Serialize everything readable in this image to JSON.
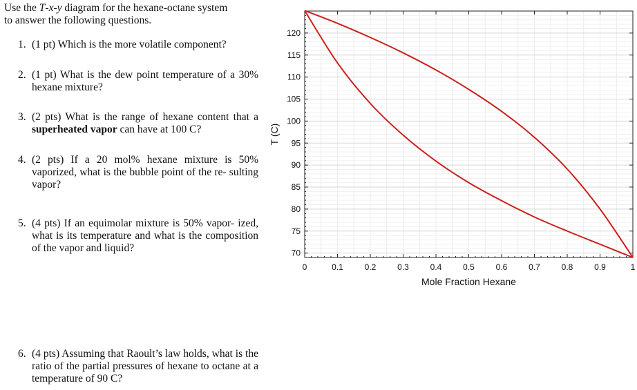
{
  "intro": {
    "line1_prefix": "Use the ",
    "tvar": "T",
    "sep1": "-",
    "xvar": "x",
    "sep2": "-",
    "yvar": "y",
    "line1_suffix": " diagram for the hexane-octane system",
    "line2": "to answer the following questions."
  },
  "questions": [
    {
      "number": "1.",
      "text": "(1 pt) Which is the more volatile component?"
    },
    {
      "number": "2.",
      "text": "(1 pt) What is the dew point temperature of a 30% hexane mixture?"
    },
    {
      "number": "3.",
      "text_before": "(2 pts) What is the range of hexane content that a ",
      "bold": "superheated vapor",
      "text_after": " can have at 100 C?"
    },
    {
      "number": "4.",
      "text": "(2 pts) If a 20 mol% hexane mixture is 50% vaporized, what is the bubble point of the re- sulting vapor?"
    },
    {
      "number": "5.",
      "text": "(4 pts) If an equimolar mixture is 50% vapor- ized, what is its temperature and what is the composition of the vapor and liquid?"
    },
    {
      "number": "6.",
      "text": "(4 pts) Assuming that Raoult’s law holds, what is the ratio of the partial pressures of hexane to octane at a temperature of 90 C?"
    }
  ],
  "chart_data": {
    "type": "line",
    "xlabel": "Mole Fraction Hexane",
    "ylabel": "T (C)",
    "xlim": [
      0,
      1
    ],
    "ylim": [
      69,
      125
    ],
    "xticks": [
      "0",
      "0.1",
      "0.2",
      "0.3",
      "0.4",
      "0.5",
      "0.6",
      "0.7",
      "0.8",
      "0.9",
      "1"
    ],
    "yticks": [
      "70",
      "75",
      "80",
      "85",
      "90",
      "95",
      "100",
      "105",
      "110",
      "115",
      "120"
    ],
    "grid": true,
    "line_color": "#cc1f1a",
    "series": [
      {
        "x": [
          0,
          0.1,
          0.2,
          0.3,
          0.4,
          0.5,
          0.6,
          0.7,
          0.8,
          0.9,
          1
        ],
        "y": [
          125.1,
          113.2,
          104.0,
          96.8,
          90.9,
          86.0,
          81.9,
          78.2,
          75.0,
          72.0,
          69.0
        ]
      },
      {
        "x": [
          0,
          0.1,
          0.2,
          0.3,
          0.4,
          0.5,
          0.6,
          0.7,
          0.8,
          0.9,
          1
        ],
        "y": [
          125.1,
          122.2,
          119.0,
          115.5,
          111.6,
          107.2,
          102.2,
          96.3,
          89.1,
          80.0,
          69.0
        ]
      }
    ]
  }
}
